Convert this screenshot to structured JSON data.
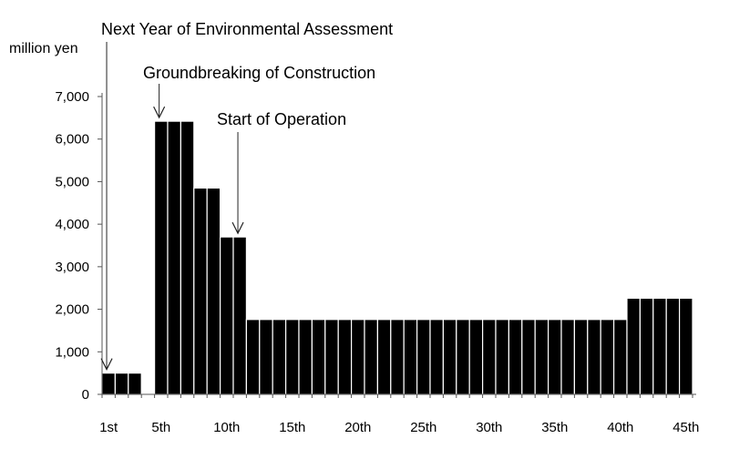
{
  "chart_data": {
    "type": "bar",
    "title": "",
    "ylabel": "million yen",
    "xlabel": "",
    "ylim": [
      0,
      7000
    ],
    "yticks": [
      0,
      1000,
      2000,
      3000,
      4000,
      5000,
      6000,
      7000
    ],
    "ytick_labels": [
      "0",
      "1,000",
      "2,000",
      "3,000",
      "4,000",
      "5,000",
      "6,000",
      "7,000"
    ],
    "xtick_labels": [
      "1st",
      "5th",
      "10th",
      "15th",
      "20th",
      "25th",
      "30th",
      "35th",
      "40th",
      "45th"
    ],
    "xtick_years": [
      1,
      5,
      10,
      15,
      20,
      25,
      30,
      35,
      40,
      45
    ],
    "years": [
      1,
      2,
      3,
      4,
      5,
      6,
      7,
      8,
      9,
      10,
      11,
      12,
      13,
      14,
      15,
      16,
      17,
      18,
      19,
      20,
      21,
      22,
      23,
      24,
      25,
      26,
      27,
      28,
      29,
      30,
      31,
      32,
      33,
      34,
      35,
      36,
      37,
      38,
      39,
      40,
      41,
      42,
      43,
      44,
      45
    ],
    "values": [
      500,
      500,
      500,
      0,
      6420,
      6420,
      6420,
      4850,
      4850,
      3700,
      3700,
      1760,
      1760,
      1760,
      1760,
      1760,
      1760,
      1760,
      1760,
      1760,
      1760,
      1760,
      1760,
      1760,
      1760,
      1760,
      1760,
      1760,
      1760,
      1760,
      1760,
      1760,
      1760,
      1760,
      1760,
      1760,
      1760,
      1760,
      1760,
      1760,
      2260,
      2260,
      2260,
      2260,
      2260
    ],
    "grid": false,
    "legend": "none",
    "bar_color": "#000000",
    "annotations": [
      {
        "text": "Next Year of Environmental Assessment",
        "year": 1
      },
      {
        "text": "Groundbreaking of Construction",
        "year": 5
      },
      {
        "text": "Start of Operation",
        "year": 11
      }
    ]
  }
}
